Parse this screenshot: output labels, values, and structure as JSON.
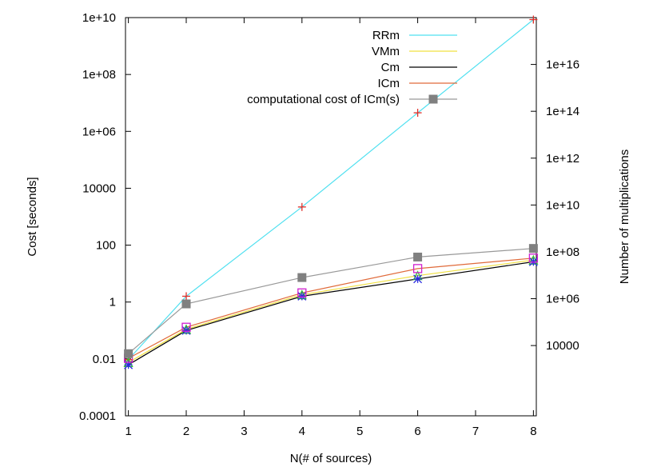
{
  "chart_data": {
    "type": "line",
    "xlabel": "N(# of sources)",
    "ylabel": "Cost [seconds]",
    "y2label": "Number of multiplications",
    "x_ticks": [
      "1",
      "2",
      "3",
      "4",
      "5",
      "6",
      "7",
      "8"
    ],
    "y_ticks": [
      "0.0001",
      "0.01",
      "1",
      "100",
      "10000",
      "1e+06",
      "1e+08",
      "1e+10"
    ],
    "y2_ticks": [
      "10000",
      "1e+06",
      "1e+08",
      "1e+10",
      "1e+12",
      "1e+14",
      "1e+16"
    ],
    "xlim": [
      0.95,
      8.05
    ],
    "ylim": [
      0.0001,
      10000000000
    ],
    "y2lim": [
      10,
      1000000000000000000
    ],
    "yscale": "log",
    "y2scale": "log",
    "legend_position": "top-right",
    "series": [
      {
        "name": "RRm",
        "color": "#4fe0f0",
        "marker": "plus",
        "marker_color": "#e0302a",
        "axis": "left",
        "x": [
          1,
          2,
          4,
          6,
          8
        ],
        "y": [
          0.0095,
          1.6,
          2200,
          4500000,
          8500000000
        ]
      },
      {
        "name": "VMm",
        "color": "#f0e040",
        "marker": "triangle",
        "marker_color": "#30c030",
        "axis": "left",
        "x": [
          1,
          2,
          4,
          6,
          8
        ],
        "y": [
          0.0075,
          0.11,
          1.8,
          8.5,
          30
        ]
      },
      {
        "name": "Cm",
        "color": "#000000",
        "marker": "asterisk",
        "marker_color": "#2a2ae0",
        "axis": "left",
        "x": [
          1,
          2,
          4,
          6,
          8
        ],
        "y": [
          0.0062,
          0.1,
          1.6,
          6.5,
          26
        ]
      },
      {
        "name": "ICm",
        "color": "#e06a3a",
        "marker": "square-open",
        "marker_color": "#d020d0",
        "axis": "left",
        "x": [
          1,
          2,
          4,
          6,
          8
        ],
        "y": [
          0.0105,
          0.13,
          2.1,
          15,
          35
        ]
      },
      {
        "name": "computational  cost of ICm(s)",
        "color": "#999999",
        "marker": "square-filled",
        "marker_color": "#808080",
        "axis": "right",
        "x": [
          1,
          2,
          4,
          6,
          8
        ],
        "y": [
          4500,
          600000,
          8000000,
          60000000,
          140000000
        ]
      }
    ]
  }
}
